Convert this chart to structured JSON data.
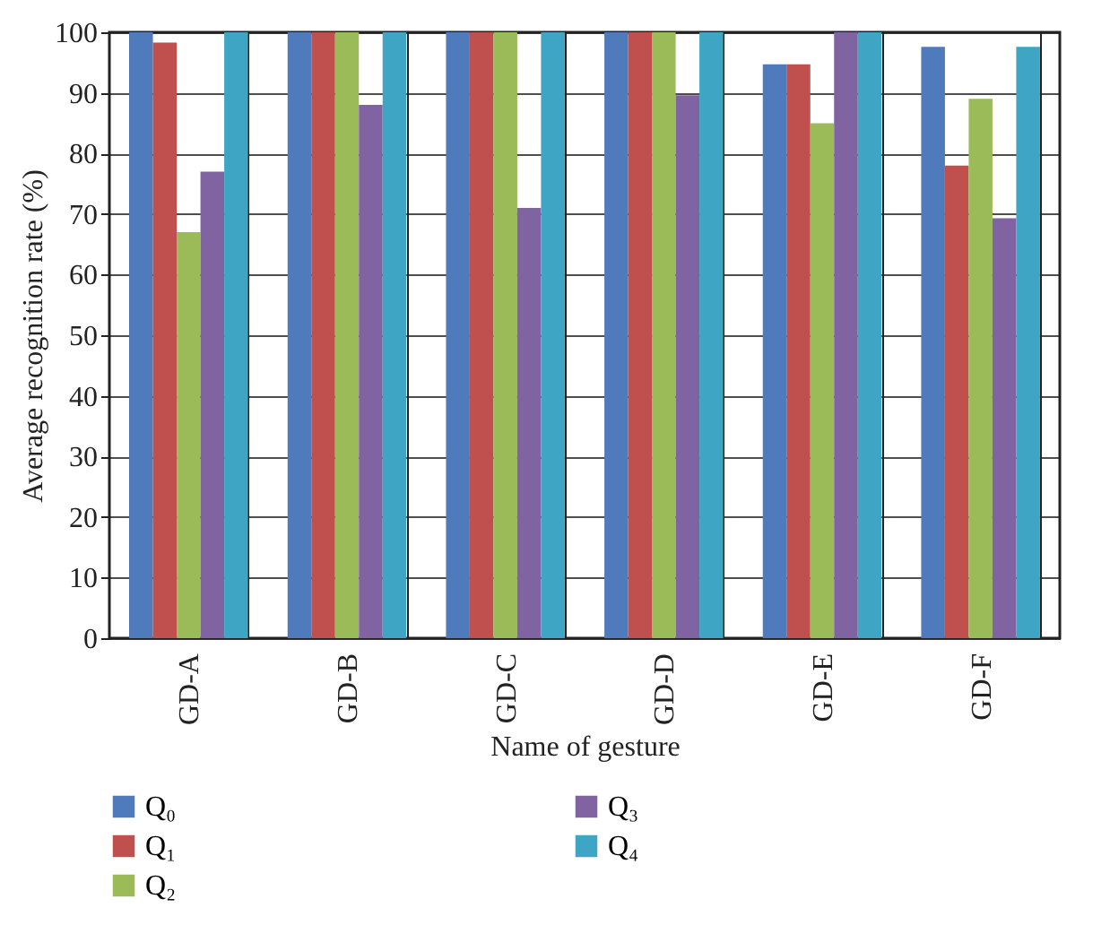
{
  "chart_data": {
    "type": "bar",
    "xlabel": "Name of gesture",
    "ylabel": "Average recognition rate (%)",
    "categories": [
      "GD-A",
      "GD-B",
      "GD-C",
      "GD-D",
      "GD-E",
      "GD-F"
    ],
    "series": [
      {
        "name": "Q₀",
        "color": "#4f7bbd",
        "values": [
          100,
          100,
          100,
          100,
          94.7,
          97.6
        ]
      },
      {
        "name": "Q₁",
        "color": "#c0504d",
        "values": [
          98.3,
          100,
          100,
          100,
          94.7,
          78
        ]
      },
      {
        "name": "Q₂",
        "color": "#9bbb59",
        "values": [
          67,
          100,
          100,
          100,
          85,
          89
        ]
      },
      {
        "name": "Q₃",
        "color": "#8064a2",
        "values": [
          77,
          88,
          71,
          89.6,
          100,
          69.3
        ]
      },
      {
        "name": "Q₄",
        "color": "#3ea6c4",
        "values": [
          100,
          100,
          100,
          100,
          100,
          97.6
        ]
      }
    ],
    "ylim": [
      0,
      100
    ],
    "yticks": [
      0,
      10,
      20,
      30,
      40,
      50,
      60,
      70,
      80,
      90,
      100
    ],
    "grid": true,
    "legend": "bottom"
  }
}
